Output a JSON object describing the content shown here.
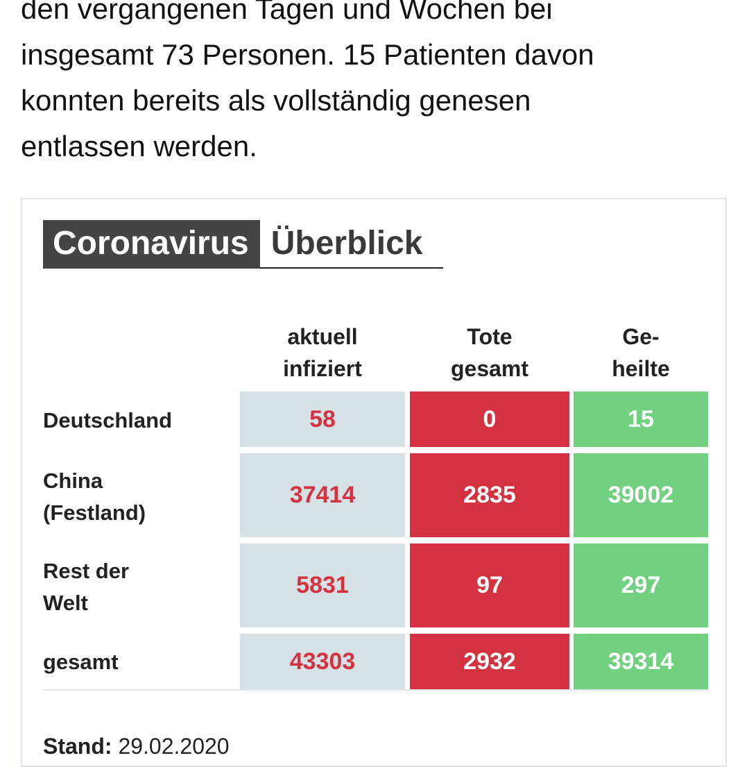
{
  "article": {
    "lines": [
      "den vergangenen Tagen und Wochen bei",
      "insgesamt 73 Personen. 15 Patienten davon",
      "konnten bereits als vollständig genesen",
      "entlassen werden."
    ]
  },
  "widget": {
    "title_dark": "Coronavirus",
    "title_light": "Überblick",
    "columns": {
      "infected": [
        "aktuell",
        "infiziert"
      ],
      "dead": [
        "Tote",
        "gesamt"
      ],
      "healed": [
        "Ge-",
        "heilte"
      ]
    },
    "rows": [
      {
        "label": [
          "Deutschland"
        ],
        "infected": "58",
        "dead": "0",
        "healed": "15"
      },
      {
        "label": [
          "China",
          "(Festland)"
        ],
        "infected": "37414",
        "dead": "2835",
        "healed": "39002"
      },
      {
        "label": [
          "Rest der",
          "Welt"
        ],
        "infected": "5831",
        "dead": "97",
        "healed": "297"
      },
      {
        "label": [
          "gesamt"
        ],
        "infected": "43303",
        "dead": "2932",
        "healed": "39314"
      }
    ],
    "stand_label": "Stand:",
    "stand_date": "29.02.2020"
  },
  "colors": {
    "infected_bg": "#d6e1e5",
    "infected_text": "#d43240",
    "dead_bg": "#d43240",
    "healed_bg": "#72d181",
    "header_dark_bg": "#444444"
  }
}
